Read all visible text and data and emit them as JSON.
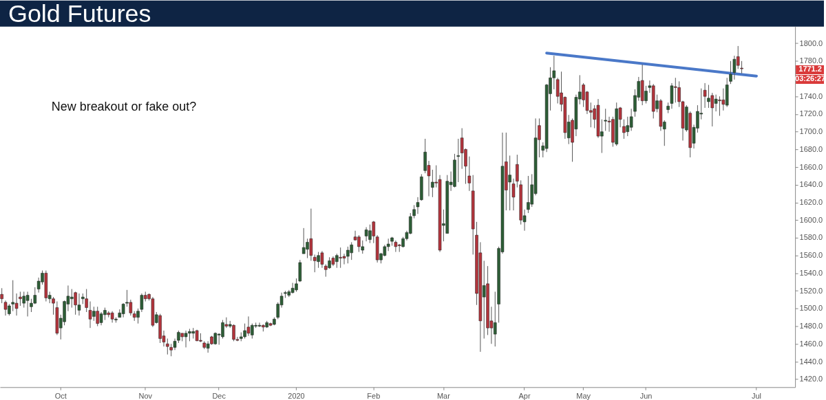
{
  "chart_data": {
    "type": "candlestick",
    "title": "Gold Futures",
    "annotations": [
      "New breakout or fake out?",
      "1771.2",
      "03:26:27"
    ],
    "categories": [
      null,
      null,
      null,
      null,
      null,
      null,
      null,
      null,
      null,
      null,
      null,
      null,
      null,
      null,
      null,
      null,
      "Oct",
      null,
      null,
      null,
      null,
      null,
      null,
      null,
      null,
      null,
      null,
      null,
      null,
      null,
      null,
      null,
      null,
      null,
      null,
      null,
      null,
      null,
      null,
      "Nov",
      null,
      null,
      null,
      null,
      null,
      null,
      null,
      null,
      null,
      null,
      null,
      null,
      null,
      null,
      null,
      null,
      null,
      null,
      null,
      "Dec",
      null,
      null,
      null,
      null,
      null,
      null,
      null,
      null,
      null,
      null,
      null,
      null,
      null,
      null,
      null,
      null,
      null,
      null,
      null,
      null,
      "2020",
      null,
      null,
      null,
      null,
      null,
      null,
      null,
      null,
      null,
      null,
      null,
      null,
      null,
      null,
      null,
      null,
      null,
      null,
      null,
      null,
      "Feb",
      null,
      null,
      null,
      null,
      null,
      null,
      null,
      null,
      null,
      null,
      null,
      null,
      null,
      null,
      null,
      null,
      null,
      null,
      "Mar",
      null,
      null,
      null,
      null,
      null,
      null,
      null,
      null,
      null,
      null,
      null,
      null,
      null,
      null,
      null,
      null,
      null,
      null,
      null,
      null,
      null,
      "Apr",
      null,
      null,
      null,
      null,
      null,
      null,
      null,
      null,
      null,
      null,
      null,
      null,
      null,
      null,
      null,
      "May",
      null,
      null,
      null,
      null,
      null,
      null,
      null,
      null,
      null,
      null,
      null,
      null,
      null,
      null,
      null,
      null,
      "Jun",
      null,
      null,
      null,
      null,
      null,
      null,
      null,
      null,
      null,
      null,
      null,
      null,
      null,
      null,
      null,
      null,
      null,
      null,
      null,
      null,
      null,
      null,
      null,
      null,
      null,
      null,
      null,
      null,
      null,
      "Jul",
      null,
      null,
      null,
      null,
      null,
      null,
      null,
      null,
      null,
      null
    ],
    "ohlc": [
      [
        1516,
        1523,
        1506,
        1511
      ],
      [
        1507,
        1509,
        1492,
        1499
      ],
      [
        1494,
        1505,
        1492,
        1503
      ],
      [
        1505,
        1532,
        1497,
        1507
      ],
      [
        1506,
        1517,
        1492,
        1500
      ],
      [
        1513,
        1519,
        1503,
        1511
      ],
      [
        1506,
        1519,
        1501,
        1514
      ],
      [
        1509,
        1519,
        1491,
        1515
      ],
      [
        1502,
        1511,
        1496,
        1506
      ],
      [
        1506,
        1524,
        1505,
        1515
      ],
      [
        1522,
        1535,
        1518,
        1531
      ],
      [
        1530,
        1543,
        1527,
        1540
      ],
      [
        1540,
        1543,
        1508,
        1512
      ],
      [
        1511,
        1519,
        1506,
        1515
      ],
      [
        1511,
        1513,
        1493,
        1506
      ],
      [
        1501,
        1508,
        1470,
        1472
      ],
      [
        1478,
        1493,
        1465,
        1489
      ],
      [
        1485,
        1509,
        1481,
        1508
      ],
      [
        1505,
        1526,
        1497,
        1514
      ],
      [
        1511,
        1522,
        1501,
        1513
      ],
      [
        1518,
        1519,
        1493,
        1504
      ],
      [
        1498,
        1517,
        1492,
        1504
      ],
      [
        1511,
        1517,
        1505,
        1513
      ],
      [
        1511,
        1522,
        1496,
        1501
      ],
      [
        1498,
        1508,
        1478,
        1488
      ],
      [
        1491,
        1502,
        1486,
        1497
      ],
      [
        1497,
        1502,
        1480,
        1483
      ],
      [
        1484,
        1496,
        1481,
        1494
      ],
      [
        1493,
        1501,
        1487,
        1498
      ],
      [
        1495,
        1497,
        1490,
        1493
      ],
      [
        1495,
        1497,
        1484,
        1488
      ],
      [
        1487,
        1490,
        1484,
        1488
      ],
      [
        1490,
        1499,
        1490,
        1495
      ],
      [
        1494,
        1506,
        1490,
        1505
      ],
      [
        1506,
        1521,
        1502,
        1507
      ],
      [
        1507,
        1510,
        1492,
        1495
      ],
      [
        1494,
        1497,
        1486,
        1490
      ],
      [
        1490,
        1500,
        1483,
        1497
      ],
      [
        1499,
        1517,
        1496,
        1515
      ],
      [
        1515,
        1519,
        1508,
        1511
      ],
      [
        1516,
        1517,
        1509,
        1511
      ],
      [
        1511,
        1513,
        1479,
        1481
      ],
      [
        1484,
        1496,
        1483,
        1493
      ],
      [
        1492,
        1494,
        1461,
        1466
      ],
      [
        1469,
        1475,
        1457,
        1462
      ],
      [
        1460,
        1466,
        1448,
        1457
      ],
      [
        1456,
        1460,
        1446,
        1453
      ],
      [
        1456,
        1466,
        1453,
        1463
      ],
      [
        1464,
        1475,
        1461,
        1473
      ],
      [
        1472,
        1472,
        1463,
        1468
      ],
      [
        1468,
        1475,
        1456,
        1472
      ],
      [
        1472,
        1477,
        1463,
        1474
      ],
      [
        1472,
        1478,
        1466,
        1474
      ],
      [
        1475,
        1476,
        1463,
        1463.5
      ],
      [
        1464,
        1472,
        1462,
        1463
      ],
      [
        1461,
        1463,
        1454,
        1456
      ],
      [
        1455,
        1463,
        1450,
        1460
      ],
      [
        1468,
        1469,
        1459,
        1460
      ],
      [
        1460,
        1473,
        1459,
        1472
      ],
      [
        1470,
        1472,
        1459,
        1471
      ],
      [
        1468,
        1487,
        1466,
        1484
      ],
      [
        1482,
        1490,
        1478,
        1480
      ],
      [
        1480,
        1486,
        1478,
        1482
      ],
      [
        1481,
        1482,
        1463,
        1465
      ],
      [
        1465,
        1468,
        1463,
        1464
      ],
      [
        1466,
        1473,
        1463,
        1468
      ],
      [
        1468,
        1483,
        1466,
        1475
      ],
      [
        1479,
        1491,
        1469,
        1472
      ],
      [
        1470,
        1483,
        1466,
        1481
      ],
      [
        1480,
        1484,
        1478,
        1481
      ],
      [
        1480,
        1484,
        1479,
        1481
      ],
      [
        1481,
        1482,
        1474,
        1479
      ],
      [
        1479,
        1486,
        1478,
        1484
      ],
      [
        1483,
        1484,
        1480,
        1481
      ],
      [
        1482,
        1490,
        1481,
        1488
      ],
      [
        1490,
        1507,
        1488,
        1505
      ],
      [
        1504,
        1518,
        1501,
        1514
      ],
      [
        1517,
        1520,
        1512,
        1518
      ],
      [
        1515,
        1521,
        1513,
        1519
      ],
      [
        1518,
        1529,
        1517,
        1523
      ],
      [
        1521,
        1534,
        1519,
        1528
      ],
      [
        1531,
        1555,
        1530,
        1552
      ],
      [
        1562,
        1591,
        1562,
        1569
      ],
      [
        1567,
        1579,
        1557,
        1575
      ],
      [
        1579,
        1613,
        1554,
        1560
      ],
      [
        1558,
        1561,
        1541,
        1554
      ],
      [
        1553,
        1564,
        1546,
        1560
      ],
      [
        1563,
        1565,
        1546,
        1550
      ],
      [
        1548,
        1550,
        1536,
        1544
      ],
      [
        1546,
        1558,
        1545,
        1554
      ],
      [
        1557,
        1559,
        1548,
        1550
      ],
      [
        1553,
        1562,
        1546,
        1560
      ],
      [
        1558,
        1569,
        1546,
        1557
      ],
      [
        1559,
        1562,
        1550,
        1557
      ],
      [
        1559,
        1570,
        1551,
        1566
      ],
      [
        1563,
        1575,
        1555,
        1572
      ],
      [
        1581,
        1588,
        1577,
        1577.5
      ],
      [
        1581,
        1583,
        1564,
        1570
      ],
      [
        1566,
        1577,
        1562,
        1570
      ],
      [
        1582,
        1592,
        1576,
        1589
      ],
      [
        1578,
        1595,
        1574,
        1588
      ],
      [
        1598,
        1599,
        1574,
        1582
      ],
      [
        1581,
        1583,
        1552,
        1555
      ],
      [
        1555,
        1563,
        1551,
        1562
      ],
      [
        1560,
        1572,
        1559,
        1570
      ],
      [
        1570,
        1579,
        1565,
        1573
      ],
      [
        1576,
        1581,
        1571,
        1580
      ],
      [
        1575,
        1577,
        1564,
        1570
      ],
      [
        1572,
        1573,
        1564,
        1571
      ],
      [
        1570,
        1581,
        1569,
        1579
      ],
      [
        1579,
        1588,
        1577,
        1586
      ],
      [
        1585,
        1608,
        1584,
        1604
      ],
      [
        1605,
        1617,
        1602,
        1612
      ],
      [
        1615,
        1626,
        1607,
        1620
      ],
      [
        1623,
        1652,
        1622,
        1649
      ],
      [
        1656,
        1692,
        1653,
        1677
      ],
      [
        1662,
        1667,
        1627,
        1650
      ],
      [
        1637,
        1657,
        1626,
        1643
      ],
      [
        1643,
        1662,
        1637,
        1642
      ],
      [
        1646,
        1651,
        1564,
        1566
      ],
      [
        1594,
        1612,
        1576,
        1596
      ],
      [
        1585,
        1651,
        1585,
        1644
      ],
      [
        1640,
        1655,
        1633,
        1643
      ],
      [
        1638,
        1675,
        1637,
        1668
      ],
      [
        1672,
        1692,
        1643,
        1673
      ],
      [
        1693,
        1704,
        1658,
        1676
      ],
      [
        1680,
        1681,
        1641,
        1661
      ],
      [
        1650,
        1672,
        1633,
        1642
      ],
      [
        1633,
        1651,
        1561,
        1590
      ],
      [
        1583,
        1598,
        1504,
        1517
      ],
      [
        1563,
        1575,
        1451,
        1486
      ],
      [
        1513,
        1554,
        1466,
        1526
      ],
      [
        1528,
        1548,
        1470,
        1478
      ],
      [
        1486,
        1502,
        1460,
        1478
      ],
      [
        1471,
        1519,
        1457,
        1484
      ],
      [
        1505,
        1570,
        1484,
        1568
      ],
      [
        1564,
        1699,
        1562,
        1661
      ],
      [
        1666,
        1699,
        1611,
        1634
      ],
      [
        1643,
        1673,
        1611,
        1651
      ],
      [
        1641,
        1647,
        1611,
        1626
      ],
      [
        1663,
        1674,
        1637,
        1644
      ],
      [
        1640,
        1645,
        1595,
        1600
      ],
      [
        1598,
        1612,
        1588,
        1605
      ],
      [
        1612,
        1650,
        1608,
        1620
      ],
      [
        1618,
        1652,
        1615,
        1640
      ],
      [
        1630,
        1715,
        1628,
        1693
      ],
      [
        1707,
        1715,
        1671,
        1691
      ],
      [
        1679,
        1688,
        1671,
        1684
      ],
      [
        1681,
        1754,
        1677,
        1753
      ],
      [
        1743,
        1773,
        1724,
        1761
      ],
      [
        1761,
        1786,
        1748,
        1769
      ],
      [
        1759,
        1761,
        1732,
        1740
      ],
      [
        1744,
        1768,
        1723,
        1731
      ],
      [
        1739,
        1740,
        1692,
        1699
      ],
      [
        1693,
        1719,
        1686,
        1711
      ],
      [
        1713,
        1715,
        1666,
        1688
      ],
      [
        1703,
        1742,
        1695,
        1739
      ],
      [
        1737,
        1764,
        1731,
        1745
      ],
      [
        1753,
        1755,
        1728,
        1736
      ],
      [
        1745,
        1746,
        1720,
        1724
      ],
      [
        1724,
        1733,
        1705,
        1722
      ],
      [
        1726,
        1730,
        1704,
        1714
      ],
      [
        1730,
        1737,
        1693,
        1695
      ],
      [
        1695,
        1714,
        1676,
        1700
      ],
      [
        1712,
        1726,
        1701,
        1713
      ],
      [
        1712,
        1717,
        1700,
        1711
      ],
      [
        1714,
        1717,
        1683,
        1688
      ],
      [
        1686,
        1733,
        1684,
        1726
      ],
      [
        1727,
        1728,
        1705,
        1714
      ],
      [
        1706,
        1714,
        1692,
        1699
      ],
      [
        1700,
        1717,
        1695,
        1707
      ],
      [
        1705,
        1726,
        1701,
        1717
      ],
      [
        1723,
        1748,
        1717,
        1741
      ],
      [
        1739,
        1762,
        1735,
        1757
      ],
      [
        1758,
        1776,
        1730,
        1735
      ],
      [
        1735,
        1752,
        1732,
        1746
      ],
      [
        1750,
        1758,
        1744,
        1752
      ],
      [
        1752,
        1754,
        1715,
        1723
      ],
      [
        1726,
        1742,
        1722,
        1735
      ],
      [
        1735,
        1737,
        1701,
        1706
      ],
      [
        1703,
        1713,
        1684,
        1711
      ],
      [
        1725,
        1733,
        1721,
        1729
      ],
      [
        1732,
        1755,
        1726,
        1752
      ],
      [
        1751,
        1761,
        1733,
        1750
      ],
      [
        1750,
        1757,
        1728,
        1734
      ],
      [
        1734,
        1735,
        1690,
        1704
      ],
      [
        1702,
        1730,
        1700,
        1728
      ],
      [
        1721,
        1723,
        1671,
        1682
      ],
      [
        1687,
        1708,
        1681,
        1705
      ],
      [
        1704,
        1730,
        1699,
        1723
      ],
      [
        1720,
        1749,
        1714,
        1721
      ],
      [
        1747,
        1755,
        1727,
        1740
      ],
      [
        1734,
        1753,
        1727,
        1738
      ],
      [
        1741,
        1744,
        1706,
        1727
      ],
      [
        1732,
        1742,
        1723,
        1737
      ],
      [
        1736,
        1740,
        1718,
        1735
      ],
      [
        1736,
        1749,
        1724,
        1731
      ],
      [
        1730,
        1761,
        1728,
        1753
      ],
      [
        1757,
        1780,
        1754,
        1765
      ],
      [
        1767,
        1786,
        1759,
        1782
      ],
      [
        1785,
        1797,
        1771,
        1775
      ],
      [
        1772,
        1780,
        1766,
        1771.2
      ],
      null,
      null,
      null,
      null,
      null,
      null,
      null,
      null,
      null,
      null,
      null,
      null,
      null,
      null
    ],
    "series": [
      {
        "type": "line",
        "color": "#4a78c8",
        "values": [
          null,
          null,
          null,
          null,
          null,
          null,
          null,
          null,
          null,
          null,
          null,
          null,
          null,
          null,
          null,
          null,
          null,
          null,
          null,
          null,
          null,
          null,
          null,
          null,
          null,
          null,
          null,
          null,
          null,
          null,
          null,
          null,
          null,
          null,
          null,
          null,
          null,
          null,
          null,
          null,
          null,
          null,
          null,
          null,
          null,
          null,
          null,
          null,
          null,
          null,
          null,
          null,
          null,
          null,
          null,
          null,
          null,
          null,
          null,
          null,
          null,
          null,
          null,
          null,
          null,
          null,
          null,
          null,
          null,
          null,
          null,
          null,
          null,
          null,
          null,
          null,
          null,
          null,
          null,
          null,
          null,
          null,
          null,
          null,
          null,
          null,
          null,
          null,
          null,
          null,
          null,
          null,
          null,
          null,
          null,
          null,
          null,
          null,
          null,
          null,
          null,
          null,
          null,
          null,
          null,
          null,
          null,
          null,
          null,
          null,
          null,
          null,
          null,
          null,
          null,
          null,
          null,
          null,
          null,
          null,
          null,
          null,
          null,
          null,
          null,
          null,
          null,
          null,
          null,
          null,
          null,
          null,
          null,
          null,
          null,
          null,
          null,
          null,
          null,
          null,
          null,
          null,
          null,
          null,
          null,
          null,
          null,
          null,
          1789,
          null,
          null,
          null,
          null,
          null,
          null,
          null,
          null,
          null,
          null,
          null,
          null,
          null,
          null,
          null,
          null,
          null,
          null,
          null,
          null,
          null,
          null,
          null,
          null,
          null,
          null,
          null,
          null,
          null,
          null,
          null,
          null,
          null,
          null,
          null,
          null,
          null,
          null,
          null,
          null,
          null,
          null,
          null,
          null,
          null,
          null,
          null,
          null,
          null,
          null,
          null,
          null,
          null,
          null,
          null,
          null,
          1763,
          null,
          null,
          null,
          null,
          null,
          null,
          null,
          null,
          null,
          null
        ]
      }
    ],
    "ylim": [
      1411,
      1819
    ],
    "yticks": [
      {
        "value": 1420,
        "label": "1420.0"
      },
      {
        "value": 1440,
        "label": "1440.0"
      },
      {
        "value": 1460,
        "label": "1460.0"
      },
      {
        "value": 1480,
        "label": "1480.0"
      },
      {
        "value": 1500,
        "label": "1500.0"
      },
      {
        "value": 1520,
        "label": "1520.0"
      },
      {
        "value": 1540,
        "label": "1540.0"
      },
      {
        "value": 1560,
        "label": "1560.0"
      },
      {
        "value": 1580,
        "label": "1580.0"
      },
      {
        "value": 1600,
        "label": "1600.0"
      },
      {
        "value": 1620,
        "label": "1620.0"
      },
      {
        "value": 1640,
        "label": "1640.0"
      },
      {
        "value": 1660,
        "label": "1660.0"
      },
      {
        "value": 1680,
        "label": "1680.0"
      },
      {
        "value": 1700,
        "label": "1700.0"
      },
      {
        "value": 1720,
        "label": "1720.0"
      },
      {
        "value": 1740,
        "label": "1740.0"
      },
      {
        "value": 1760,
        "label": null
      },
      {
        "value": 1780,
        "label": "1780.0"
      },
      {
        "value": 1800,
        "label": "1800.0"
      }
    ],
    "grid": false
  }
}
